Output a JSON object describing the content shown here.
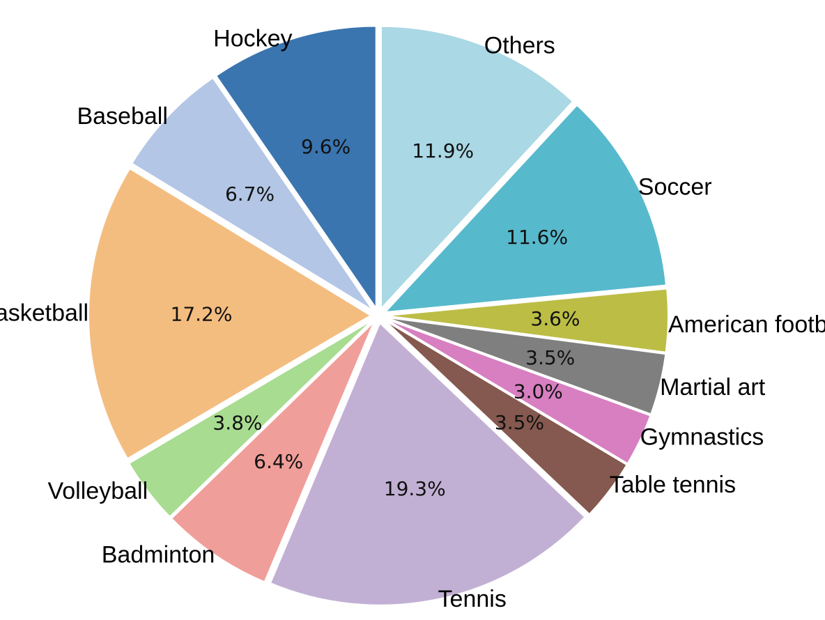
{
  "chart_data": {
    "type": "pie",
    "start_angle_deg": 90,
    "direction": "counterclockwise",
    "slices": [
      {
        "label": "Hockey",
        "value": 9.6,
        "pct_text": "9.6%",
        "color": "#3a75af"
      },
      {
        "label": "Baseball",
        "value": 6.7,
        "pct_text": "6.7%",
        "color": "#b3c6e6"
      },
      {
        "label": "Basketball",
        "value": 17.2,
        "pct_text": "17.2%",
        "color": "#f4bd80"
      },
      {
        "label": "Volleyball",
        "value": 3.8,
        "pct_text": "3.8%",
        "color": "#a8dc91"
      },
      {
        "label": "Badminton",
        "value": 6.4,
        "pct_text": "6.4%",
        "color": "#f09e99"
      },
      {
        "label": "Tennis",
        "value": 19.3,
        "pct_text": "19.3%",
        "color": "#c2b0d4"
      },
      {
        "label": "Table tennis",
        "value": 3.5,
        "pct_text": "3.5%",
        "color": "#85594f"
      },
      {
        "label": "Gymnastics",
        "value": 3.0,
        "pct_text": "3.0%",
        "color": "#d77fc1"
      },
      {
        "label": "Martial art",
        "value": 3.5,
        "pct_text": "3.5%",
        "color": "#7f7f7f"
      },
      {
        "label": "American football",
        "value": 3.6,
        "pct_text": "3.6%",
        "color": "#bcbd45"
      },
      {
        "label": "Soccer",
        "value": 11.6,
        "pct_text": "11.6%",
        "color": "#57b9cc"
      },
      {
        "label": "Others",
        "value": 11.9,
        "pct_text": "11.9%",
        "color": "#aad8e4"
      }
    ]
  }
}
